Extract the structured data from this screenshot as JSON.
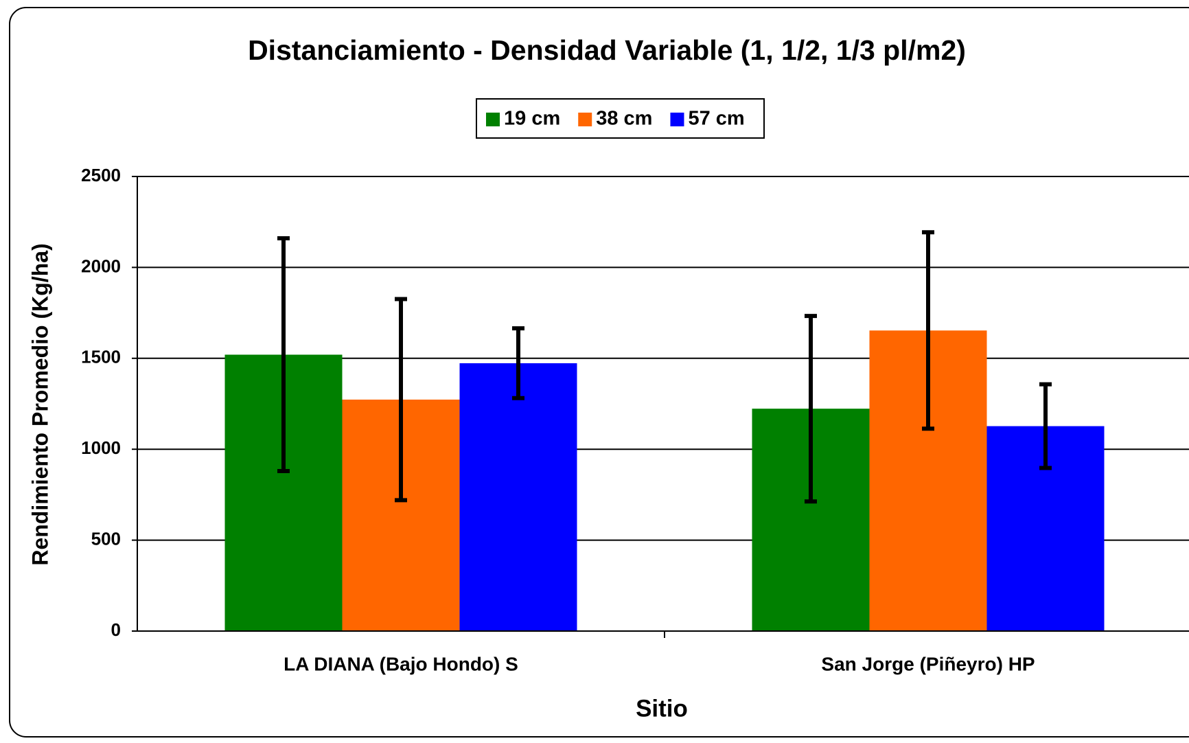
{
  "chart_data": {
    "type": "bar",
    "title": "Distanciamiento - Densidad Variable (1, 1/2, 1/3 pl/m2)",
    "x_label": "Sitio",
    "y_label": "Rendimiento Promedio (Kg/ha)",
    "categories": [
      "LA DIANA (Bajo Hondo) S",
      "San Jorge (Piñeyro) HP"
    ],
    "series": [
      {
        "name": "19 cm",
        "color": "#008000",
        "values": [
          1520,
          1223
        ],
        "errors": [
          640,
          510
        ]
      },
      {
        "name": "38 cm",
        "color": "#ff6600",
        "values": [
          1273,
          1653
        ],
        "errors": [
          553,
          540
        ]
      },
      {
        "name": "57 cm",
        "color": "#0000ff",
        "values": [
          1473,
          1127
        ],
        "errors": [
          192,
          230
        ]
      }
    ],
    "ylim": [
      0,
      2500
    ],
    "yticks": [
      0,
      500,
      1000,
      1500,
      2000,
      2500
    ],
    "grid": true,
    "legend": "top"
  }
}
